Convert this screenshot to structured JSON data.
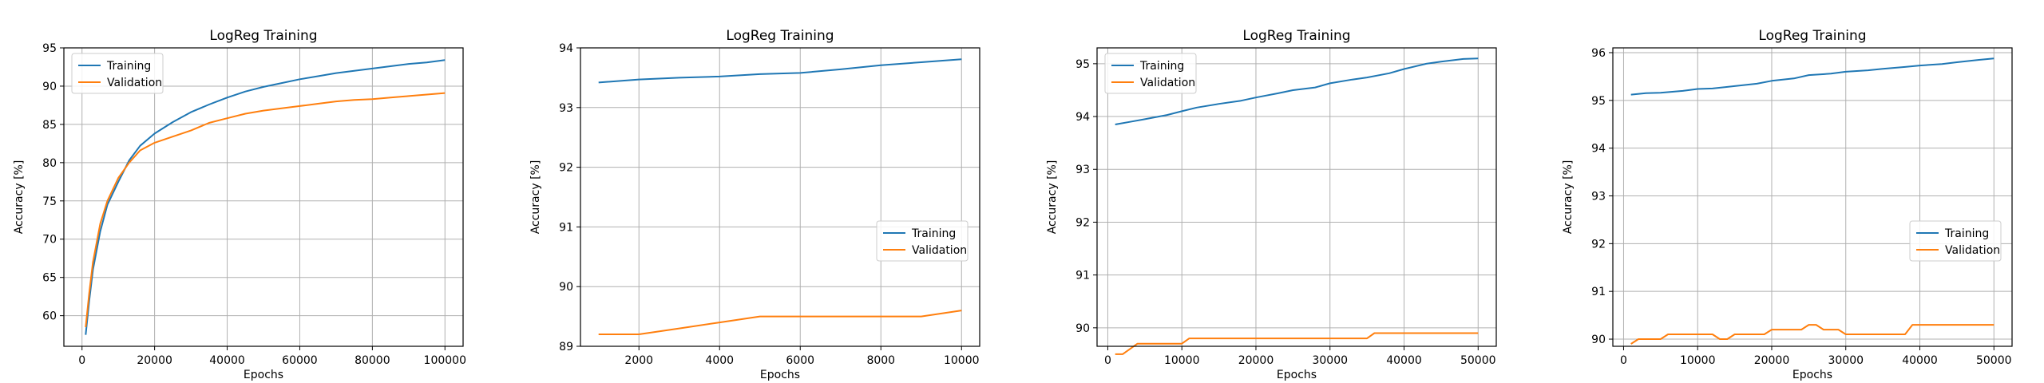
{
  "colors": {
    "training": "#1f77b4",
    "validation": "#ff7f0e"
  },
  "chart_data": [
    {
      "type": "line",
      "title": "LogReg Training",
      "xlabel": "Epochs",
      "ylabel": "Accuracy [%]",
      "xlim": [
        -5000,
        105000
      ],
      "ylim": [
        56,
        95
      ],
      "xticks": [
        0,
        20000,
        40000,
        60000,
        80000,
        100000
      ],
      "yticks": [
        60,
        65,
        70,
        75,
        80,
        85,
        90,
        95
      ],
      "grid": true,
      "legend": "upper-left",
      "series": [
        {
          "name": "Training",
          "x": [
            1000,
            2000,
            3000,
            5000,
            7000,
            10000,
            13000,
            16000,
            20000,
            25000,
            30000,
            35000,
            40000,
            45000,
            50000,
            55000,
            60000,
            65000,
            70000,
            75000,
            80000,
            85000,
            90000,
            95000,
            100000
          ],
          "y": [
            57.5,
            62,
            66,
            71,
            74.5,
            77.5,
            80.3,
            82.2,
            83.8,
            85.3,
            86.6,
            87.6,
            88.5,
            89.3,
            89.9,
            90.4,
            90.9,
            91.3,
            91.7,
            92.0,
            92.3,
            92.6,
            92.9,
            93.1,
            93.4
          ]
        },
        {
          "name": "Validation",
          "x": [
            1000,
            2000,
            3000,
            5000,
            7000,
            10000,
            13000,
            16000,
            20000,
            25000,
            30000,
            35000,
            40000,
            45000,
            50000,
            55000,
            60000,
            65000,
            70000,
            75000,
            80000,
            85000,
            90000,
            95000,
            100000
          ],
          "y": [
            58.5,
            63,
            67,
            72,
            75,
            78,
            80,
            81.6,
            82.6,
            83.4,
            84.2,
            85.2,
            85.8,
            86.4,
            86.8,
            87.1,
            87.4,
            87.7,
            88.0,
            88.2,
            88.3,
            88.5,
            88.7,
            88.9,
            89.1
          ]
        }
      ]
    },
    {
      "type": "line",
      "title": "LogReg Training",
      "xlabel": "Epochs",
      "ylabel": "Accuracy [%]",
      "xlim": [
        550,
        10450
      ],
      "ylim": [
        89,
        94
      ],
      "xticks": [
        2000,
        4000,
        6000,
        8000,
        10000
      ],
      "yticks": [
        89,
        90,
        91,
        92,
        93,
        94
      ],
      "grid": true,
      "legend": "center-right",
      "series": [
        {
          "name": "Training",
          "x": [
            1000,
            2000,
            3000,
            4000,
            5000,
            6000,
            7000,
            8000,
            9000,
            10000
          ],
          "y": [
            93.42,
            93.47,
            93.5,
            93.52,
            93.56,
            93.58,
            93.64,
            93.71,
            93.76,
            93.81
          ]
        },
        {
          "name": "Validation",
          "x": [
            1000,
            2000,
            3000,
            4000,
            5000,
            6000,
            7000,
            8000,
            9000,
            10000
          ],
          "y": [
            89.2,
            89.2,
            89.3,
            89.4,
            89.5,
            89.5,
            89.5,
            89.5,
            89.5,
            89.6
          ]
        }
      ]
    },
    {
      "type": "line",
      "title": "LogReg Training",
      "xlabel": "Epochs",
      "ylabel": "Accuracy [%]",
      "xlim": [
        -1450,
        52450
      ],
      "ylim": [
        89.65,
        95.3
      ],
      "xticks": [
        0,
        10000,
        20000,
        30000,
        40000,
        50000
      ],
      "yticks": [
        90,
        91,
        92,
        93,
        94,
        95
      ],
      "grid": true,
      "legend": "upper-left",
      "series": [
        {
          "name": "Training",
          "x": [
            1000,
            3000,
            5000,
            8000,
            10000,
            12000,
            15000,
            18000,
            20000,
            23000,
            25000,
            28000,
            30000,
            33000,
            35000,
            38000,
            40000,
            43000,
            45000,
            48000,
            50000
          ],
          "y": [
            93.85,
            93.9,
            93.95,
            94.03,
            94.1,
            94.17,
            94.24,
            94.3,
            94.36,
            94.44,
            94.5,
            94.55,
            94.63,
            94.7,
            94.74,
            94.82,
            94.9,
            95.0,
            95.04,
            95.09,
            95.1
          ]
        },
        {
          "name": "Validation",
          "x": [
            1000,
            2000,
            3000,
            4000,
            5000,
            10000,
            11000,
            35000,
            36000,
            50000
          ],
          "y": [
            89.5,
            89.5,
            89.6,
            89.7,
            89.7,
            89.7,
            89.8,
            89.8,
            89.9,
            89.9
          ]
        }
      ]
    },
    {
      "type": "line",
      "title": "LogReg Training",
      "xlabel": "Epochs",
      "ylabel": "Accuracy [%]",
      "xlim": [
        -1450,
        52450
      ],
      "ylim": [
        89.85,
        96.1
      ],
      "xticks": [
        0,
        10000,
        20000,
        30000,
        40000,
        50000
      ],
      "yticks": [
        90,
        91,
        92,
        93,
        94,
        95,
        96
      ],
      "grid": true,
      "legend": "center-right",
      "series": [
        {
          "name": "Training",
          "x": [
            1000,
            3000,
            5000,
            8000,
            10000,
            12000,
            15000,
            18000,
            20000,
            23000,
            25000,
            28000,
            30000,
            33000,
            35000,
            38000,
            40000,
            43000,
            45000,
            48000,
            50000
          ],
          "y": [
            95.12,
            95.15,
            95.16,
            95.2,
            95.24,
            95.25,
            95.3,
            95.35,
            95.41,
            95.46,
            95.53,
            95.56,
            95.6,
            95.63,
            95.66,
            95.7,
            95.73,
            95.76,
            95.8,
            95.85,
            95.88
          ]
        },
        {
          "name": "Validation",
          "x": [
            1000,
            2000,
            5000,
            6000,
            12000,
            13000,
            14000,
            15000,
            19000,
            20000,
            24000,
            25000,
            26000,
            27000,
            29000,
            30000,
            38000,
            39000,
            50000
          ],
          "y": [
            89.9,
            90.0,
            90.0,
            90.1,
            90.1,
            90.0,
            90.0,
            90.1,
            90.1,
            90.2,
            90.2,
            90.3,
            90.3,
            90.2,
            90.2,
            90.1,
            90.1,
            90.3,
            90.3
          ]
        }
      ]
    }
  ]
}
